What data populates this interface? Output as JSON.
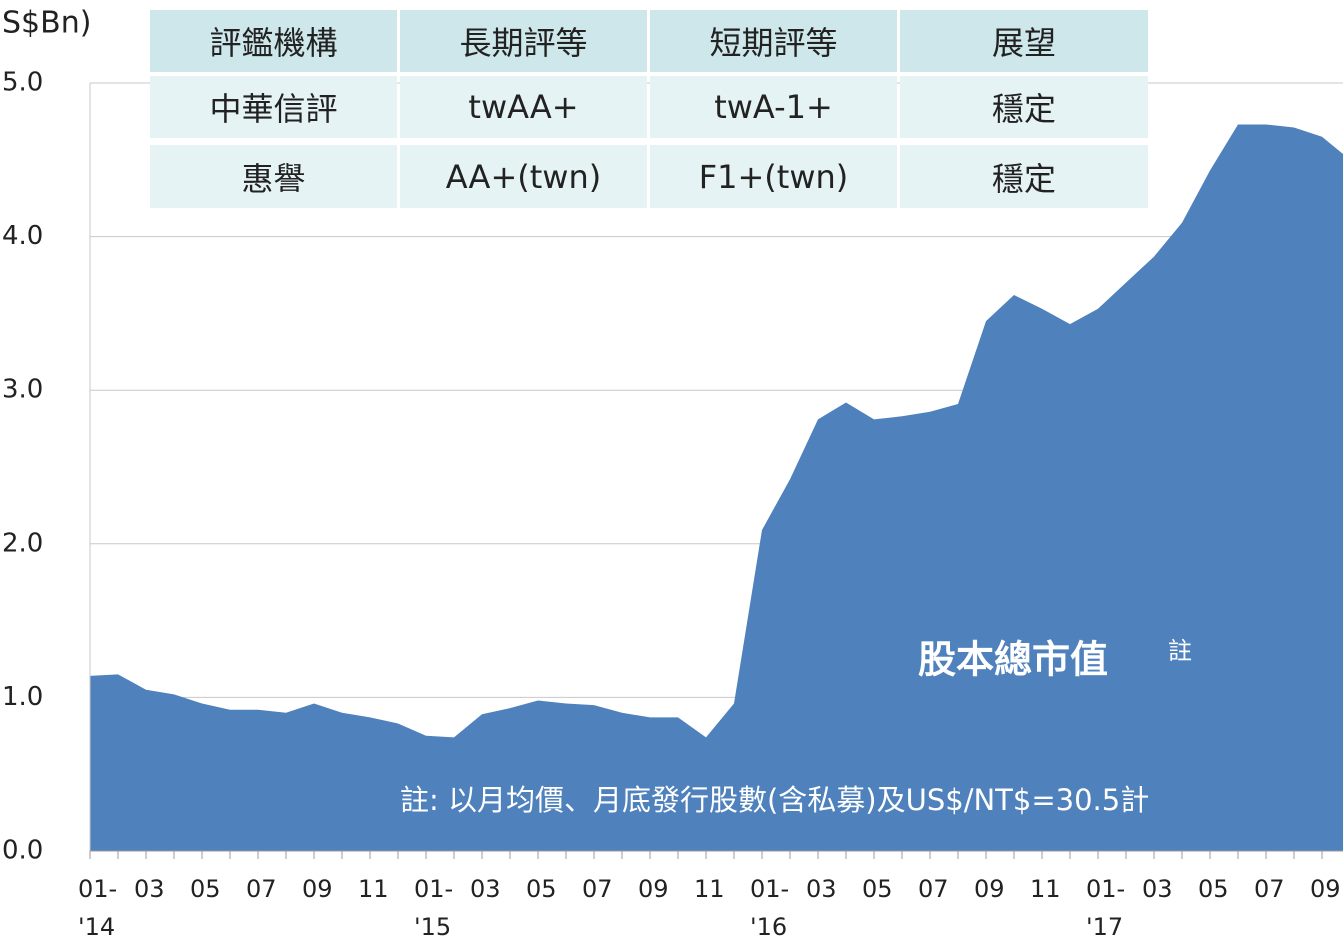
{
  "chart_data": {
    "type": "area",
    "y_label": "S$Bn)",
    "categories": [
      "01-\n'14",
      null,
      "03",
      null,
      "05",
      null,
      "07",
      null,
      "09",
      null,
      "11",
      null,
      "01-\n'15",
      null,
      "03",
      null,
      "05",
      null,
      "07",
      null,
      "09",
      null,
      "11",
      null,
      "01-\n'16",
      null,
      "03",
      null,
      "05",
      null,
      "07",
      null,
      "09",
      null,
      "11",
      null,
      "01-\n'17",
      null,
      "03",
      null,
      "05",
      null,
      "07",
      null,
      "09",
      null
    ],
    "series": [
      {
        "name": "股本總市值",
        "color": "#4f81bd",
        "values": [
          1.14,
          1.15,
          1.05,
          1.02,
          0.96,
          0.92,
          0.92,
          0.9,
          0.96,
          0.9,
          0.87,
          0.83,
          0.75,
          0.74,
          0.89,
          0.93,
          0.98,
          0.96,
          0.95,
          0.9,
          0.87,
          0.87,
          0.74,
          0.96,
          2.09,
          2.42,
          2.81,
          2.92,
          2.81,
          2.83,
          2.86,
          2.91,
          3.45,
          3.62,
          3.53,
          3.43,
          3.53,
          3.7,
          3.87,
          4.09,
          4.43,
          4.73,
          4.73,
          4.71,
          4.65,
          4.5
        ]
      }
    ],
    "ylim": [
      0,
      5
    ],
    "yticks": [
      {
        "value": 0,
        "label": "0.0"
      },
      {
        "value": 1,
        "label": "1.0"
      },
      {
        "value": 2,
        "label": "2.0"
      },
      {
        "value": 3,
        "label": "3.0"
      },
      {
        "value": 4,
        "label": "4.0"
      },
      {
        "value": 5,
        "label": "5.0"
      }
    ],
    "grid": true,
    "series_note": "註",
    "footnote": "註: 以月均價、月底發行股數(含私募)及US$/NT$=30.5計"
  },
  "table": {
    "header": [
      "評鑑機構",
      "長期評等",
      "短期評等",
      "展望"
    ],
    "rows": [
      [
        "中華信評",
        "twAA+",
        "twA-1+",
        "穩定"
      ],
      [
        "惠譽",
        "AA+(twn)",
        "F1+(twn)",
        "穩定"
      ]
    ]
  }
}
